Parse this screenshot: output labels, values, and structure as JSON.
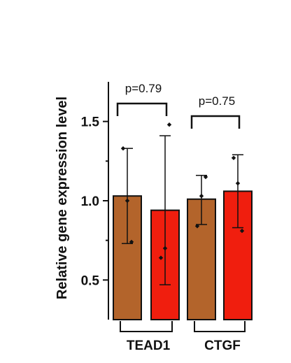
{
  "chart_data": {
    "type": "bar",
    "ylabel": "Relative gene expression level",
    "ylim": [
      0.25,
      1.75
    ],
    "yticks": [
      {
        "value": 0.5,
        "label": "0.5"
      },
      {
        "value": 1.0,
        "label": "1.0"
      },
      {
        "value": 1.5,
        "label": "1.5"
      }
    ],
    "groups": [
      {
        "label": "TEAD1",
        "pvalue": "p=0.79",
        "bars": [
          {
            "value": 1.03,
            "err_low": 0.73,
            "err_high": 1.33,
            "color": "#b3642b",
            "points": [
              {
                "offset": -1,
                "y": 1.33
              },
              {
                "offset": 0,
                "y": 1.0
              },
              {
                "offset": 1,
                "y": 0.74
              }
            ]
          },
          {
            "value": 0.94,
            "err_low": 0.47,
            "err_high": 1.41,
            "color": "#f01e0e",
            "points": [
              {
                "offset": 1,
                "y": 1.48
              },
              {
                "offset": 0,
                "y": 0.7
              },
              {
                "offset": -1,
                "y": 0.64
              }
            ]
          }
        ]
      },
      {
        "label": "CTGF",
        "pvalue": "p=0.75",
        "bars": [
          {
            "value": 1.01,
            "err_low": 0.85,
            "err_high": 1.16,
            "color": "#b3642b",
            "points": [
              {
                "offset": 1,
                "y": 1.15
              },
              {
                "offset": 0,
                "y": 1.03
              },
              {
                "offset": -1,
                "y": 0.84
              }
            ]
          },
          {
            "value": 1.06,
            "err_low": 0.83,
            "err_high": 1.29,
            "color": "#f01e0e",
            "points": [
              {
                "offset": -1,
                "y": 1.27
              },
              {
                "offset": 0,
                "y": 1.11
              },
              {
                "offset": 1,
                "y": 0.81
              }
            ]
          }
        ]
      }
    ]
  }
}
